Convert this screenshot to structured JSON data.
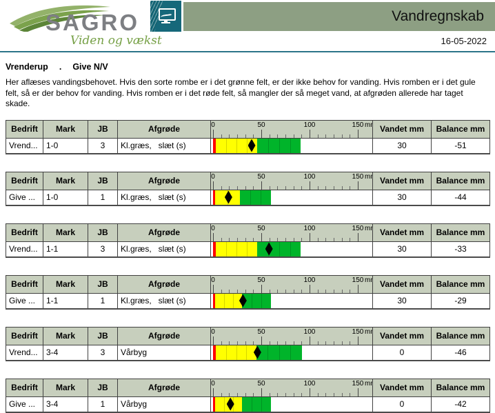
{
  "header": {
    "logo": {
      "brand": "SAGRO",
      "tagline": "Viden og vækst"
    },
    "title": "Vandregnskab",
    "date": "16-05-2022"
  },
  "intro": {
    "location": "Vrenderup",
    "separator": ".",
    "section": "Give N/V",
    "description": "Her aflæses vandingsbehovet. Hvis den sorte rombe er i det grønne felt, er der ikke behov for vanding. Hvis romben er i det gule felt, så er der behov for vanding. Hvis romben er i det røde felt, så mangler der så meget vand, at afgrøden allerede har taget skade."
  },
  "table_headers": {
    "bedrift": "Bedrift",
    "mark": "Mark",
    "jb": "JB",
    "afgrode": "Afgrøde",
    "vandet": "Vandet mm",
    "balance": "Balance mm"
  },
  "scale": {
    "ticks": [
      0,
      50,
      100,
      150
    ],
    "unit": "mm",
    "max": 150
  },
  "colors": {
    "red": "#ff0000",
    "yellow": "#ffff00",
    "yellow_divider": "#d6d600",
    "green": "#00b42a",
    "green_divider": "#009422",
    "header_bg": "#c7cfbd",
    "band_green": "#8d9f83",
    "icon_teal": "#16687a",
    "rule_teal": "#2b7488"
  },
  "rows": [
    {
      "bedrift": "Vrend...",
      "mark": "1-0",
      "jb": "3",
      "afgrode": "Kl.græs,   slæt (s)",
      "vandet": "30",
      "balance": "-51",
      "gauge": {
        "red": [
          0,
          3
        ],
        "yellow": [
          3,
          46
        ],
        "green": [
          46,
          91
        ],
        "diamond": 40
      }
    },
    {
      "bedrift": "Give ...",
      "mark": "1-0",
      "jb": "1",
      "afgrode": "Kl.græs,   slæt (s)",
      "vandet": "30",
      "balance": "-44",
      "gauge": {
        "red": [
          0,
          2
        ],
        "yellow": [
          2,
          28
        ],
        "green": [
          28,
          60
        ],
        "diamond": 16
      }
    },
    {
      "bedrift": "Vrend...",
      "mark": "1-1",
      "jb": "3",
      "afgrode": "Kl.græs,   slæt (s)",
      "vandet": "30",
      "balance": "-33",
      "gauge": {
        "red": [
          0,
          3
        ],
        "yellow": [
          3,
          46
        ],
        "green": [
          46,
          91
        ],
        "diamond": 58
      }
    },
    {
      "bedrift": "Give ...",
      "mark": "1-1",
      "jb": "1",
      "afgrode": "Kl.græs,   slæt (s)",
      "vandet": "30",
      "balance": "-29",
      "gauge": {
        "red": [
          0,
          2
        ],
        "yellow": [
          2,
          30
        ],
        "green": [
          30,
          60
        ],
        "diamond": 31
      }
    },
    {
      "bedrift": "Vrend...",
      "mark": "3-4",
      "jb": "3",
      "afgrode": "Vårbyg",
      "vandet": "0",
      "balance": "-46",
      "gauge": {
        "red": [
          0,
          3
        ],
        "yellow": [
          3,
          45
        ],
        "green": [
          45,
          92
        ],
        "diamond": 46
      }
    },
    {
      "bedrift": "Give ...",
      "mark": "3-4",
      "jb": "1",
      "afgrode": "Vårbyg",
      "vandet": "0",
      "balance": "-42",
      "gauge": {
        "red": [
          0,
          2
        ],
        "yellow": [
          2,
          30
        ],
        "green": [
          30,
          60
        ],
        "diamond": 18
      }
    }
  ]
}
